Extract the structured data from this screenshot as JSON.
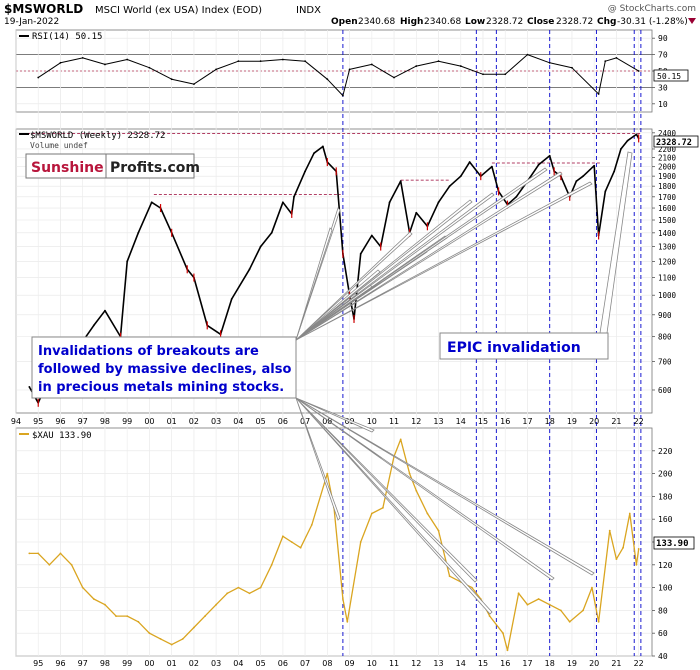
{
  "header": {
    "symbol": "$MSWORLD",
    "description": "MSCI World (ex USA) Index (EOD)",
    "exchange": "INDX",
    "watermark": "@ StockCharts.com",
    "date": "19-Jan-2022",
    "open_label": "Open",
    "open": "2340.68",
    "high_label": "High",
    "high": "2340.68",
    "low_label": "Low",
    "low": "2328.72",
    "close_label": "Close",
    "close": "2328.72",
    "chg_label": "Chg",
    "chg": "-30.31 (-1.28%)"
  },
  "logo": {
    "part1": "Sunshine",
    "part2": "Profits.com"
  },
  "colors": {
    "price": "#000000",
    "down_candle": "#cc0000",
    "gold": "#daa520",
    "guide_line": "#0000cc",
    "resistance": "#990033",
    "annotation_text": "#0000cc",
    "callout_fill": "#ffffff",
    "callout_stroke": "#888888"
  },
  "annotations": {
    "left": [
      "Invalidations of breakouts are",
      "followed by massive declines, also",
      "in precious metals mining stocks."
    ],
    "right": "EPIC invalidation"
  },
  "chart_data": [
    {
      "type": "line",
      "panel": "indicator",
      "label": "RSI(14) 50.15",
      "last_value_badge": "50.15",
      "ylim": [
        0,
        100
      ],
      "yticks": [
        10,
        30,
        50,
        70,
        90
      ],
      "reference_lines": [
        30,
        70
      ],
      "x": [
        1995,
        1996,
        1997,
        1998,
        1999,
        2000,
        2001,
        2002,
        2003,
        2004,
        2005,
        2006,
        2007,
        2008,
        2008.7,
        2009,
        2010,
        2011,
        2012,
        2013,
        2014,
        2015,
        2016,
        2017,
        2018,
        2019,
        2020.2,
        2020.5,
        2021,
        2022
      ],
      "values": [
        42,
        60,
        66,
        58,
        64,
        54,
        40,
        34,
        52,
        62,
        62,
        64,
        62,
        40,
        20,
        52,
        58,
        42,
        56,
        62,
        56,
        46,
        46,
        70,
        60,
        54,
        22,
        62,
        66,
        50
      ]
    },
    {
      "type": "line",
      "panel": "price",
      "label": "$MSWORLD (Weekly) 2328.72",
      "sublabel": "Volume undef",
      "last_value_badge": "2328.72",
      "scale": "log",
      "ylim": [
        530,
        2450
      ],
      "yticks": [
        600,
        700,
        800,
        900,
        1000,
        1100,
        1200,
        1300,
        1400,
        1500,
        1600,
        1700,
        1800,
        1900,
        2000,
        2100,
        2200,
        2400
      ],
      "xticks": [
        "94",
        "95",
        "96",
        "97",
        "98",
        "99",
        "00",
        "01",
        "02",
        "03",
        "04",
        "05",
        "06",
        "07",
        "08",
        "09",
        "10",
        "11",
        "12",
        "13",
        "14",
        "15",
        "16",
        "17",
        "18",
        "19",
        "20",
        "21",
        "22"
      ],
      "x": [
        1994.6,
        1995.0,
        1995.5,
        1996.0,
        1996.5,
        1997.0,
        1997.5,
        1998.0,
        1998.7,
        1999.0,
        1999.5,
        2000.1,
        2000.5,
        2001.0,
        2001.7,
        2002.0,
        2002.6,
        2003.2,
        2003.7,
        2004.5,
        2005.0,
        2005.5,
        2006.0,
        2006.4,
        2006.5,
        2007.0,
        2007.4,
        2007.8,
        2008.0,
        2008.4,
        2008.7,
        2009.0,
        2009.2,
        2009.5,
        2010.0,
        2010.4,
        2010.8,
        2011.3,
        2011.7,
        2012.0,
        2012.5,
        2013.0,
        2013.5,
        2014.0,
        2014.4,
        2014.9,
        2015.4,
        2015.7,
        2016.1,
        2016.5,
        2017.0,
        2017.5,
        2018.0,
        2018.2,
        2018.5,
        2018.9,
        2019.2,
        2019.5,
        2020.0,
        2020.2,
        2020.5,
        2020.9,
        2021.2,
        2021.5,
        2021.9,
        2022.0
      ],
      "values": [
        610,
        560,
        640,
        700,
        740,
        780,
        850,
        920,
        800,
        1200,
        1400,
        1650,
        1600,
        1400,
        1150,
        1100,
        850,
        810,
        980,
        1150,
        1300,
        1400,
        1650,
        1550,
        1700,
        1950,
        2150,
        2230,
        2050,
        1950,
        1250,
        1000,
        880,
        1250,
        1380,
        1300,
        1650,
        1850,
        1400,
        1560,
        1450,
        1650,
        1800,
        1900,
        2050,
        1900,
        2000,
        1750,
        1630,
        1700,
        1850,
        2020,
        2120,
        1950,
        1900,
        1700,
        1850,
        1900,
        2010,
        1380,
        1750,
        1950,
        2200,
        2300,
        2380,
        2328.72
      ],
      "resistance_levels": [
        {
          "value": 1720,
          "from": 2000.2,
          "to": 2008.6
        },
        {
          "value": 2040,
          "from": 2015.4,
          "to": 2020.3
        },
        {
          "value": 1860,
          "from": 2011.3,
          "to": 2013.5
        },
        {
          "value": 2390,
          "from": 1994.5,
          "to": 2022.1
        }
      ],
      "vertical_markers": [
        2008.7,
        2014.7,
        2015.6,
        2018.0,
        2020.1,
        2021.8,
        2022.1
      ]
    },
    {
      "type": "line",
      "panel": "gold_miners",
      "label": "$XAU 133.90",
      "last_value_badge": "133.90",
      "ylim": [
        40,
        240
      ],
      "yticks": [
        40,
        60,
        80,
        100,
        120,
        140,
        160,
        180,
        200,
        220
      ],
      "xticks": [
        "95",
        "96",
        "97",
        "98",
        "99",
        "00",
        "01",
        "02",
        "03",
        "04",
        "05",
        "06",
        "07",
        "08",
        "09",
        "10",
        "11",
        "12",
        "13",
        "14",
        "15",
        "16",
        "17",
        "18",
        "19",
        "20",
        "21",
        "22"
      ],
      "x": [
        1994.6,
        1995.0,
        1995.5,
        1996.0,
        1996.5,
        1997.0,
        1997.5,
        1998.0,
        1998.5,
        1999.0,
        1999.5,
        2000.0,
        2000.5,
        2001.0,
        2001.5,
        2002.0,
        2002.5,
        2003.0,
        2003.5,
        2004.0,
        2004.5,
        2005.0,
        2005.5,
        2006.0,
        2006.4,
        2006.8,
        2007.3,
        2008.0,
        2008.3,
        2008.7,
        2008.9,
        2009.5,
        2010.0,
        2010.5,
        2011.0,
        2011.3,
        2011.7,
        2012.0,
        2012.5,
        2013.0,
        2013.5,
        2014.0,
        2014.5,
        2014.9,
        2015.3,
        2015.9,
        2016.1,
        2016.6,
        2017.0,
        2017.5,
        2018.0,
        2018.5,
        2018.9,
        2019.5,
        2019.9,
        2020.2,
        2020.7,
        2021.0,
        2021.3,
        2021.6,
        2021.9,
        2022.0
      ],
      "values": [
        130,
        130,
        120,
        130,
        120,
        100,
        90,
        85,
        75,
        75,
        70,
        60,
        55,
        50,
        55,
        65,
        75,
        85,
        95,
        100,
        95,
        100,
        120,
        145,
        140,
        135,
        155,
        200,
        170,
        90,
        70,
        140,
        165,
        170,
        215,
        230,
        200,
        185,
        165,
        150,
        110,
        105,
        100,
        90,
        75,
        60,
        45,
        95,
        85,
        90,
        85,
        80,
        70,
        80,
        100,
        70,
        150,
        125,
        135,
        165,
        120,
        133.9
      ]
    }
  ]
}
